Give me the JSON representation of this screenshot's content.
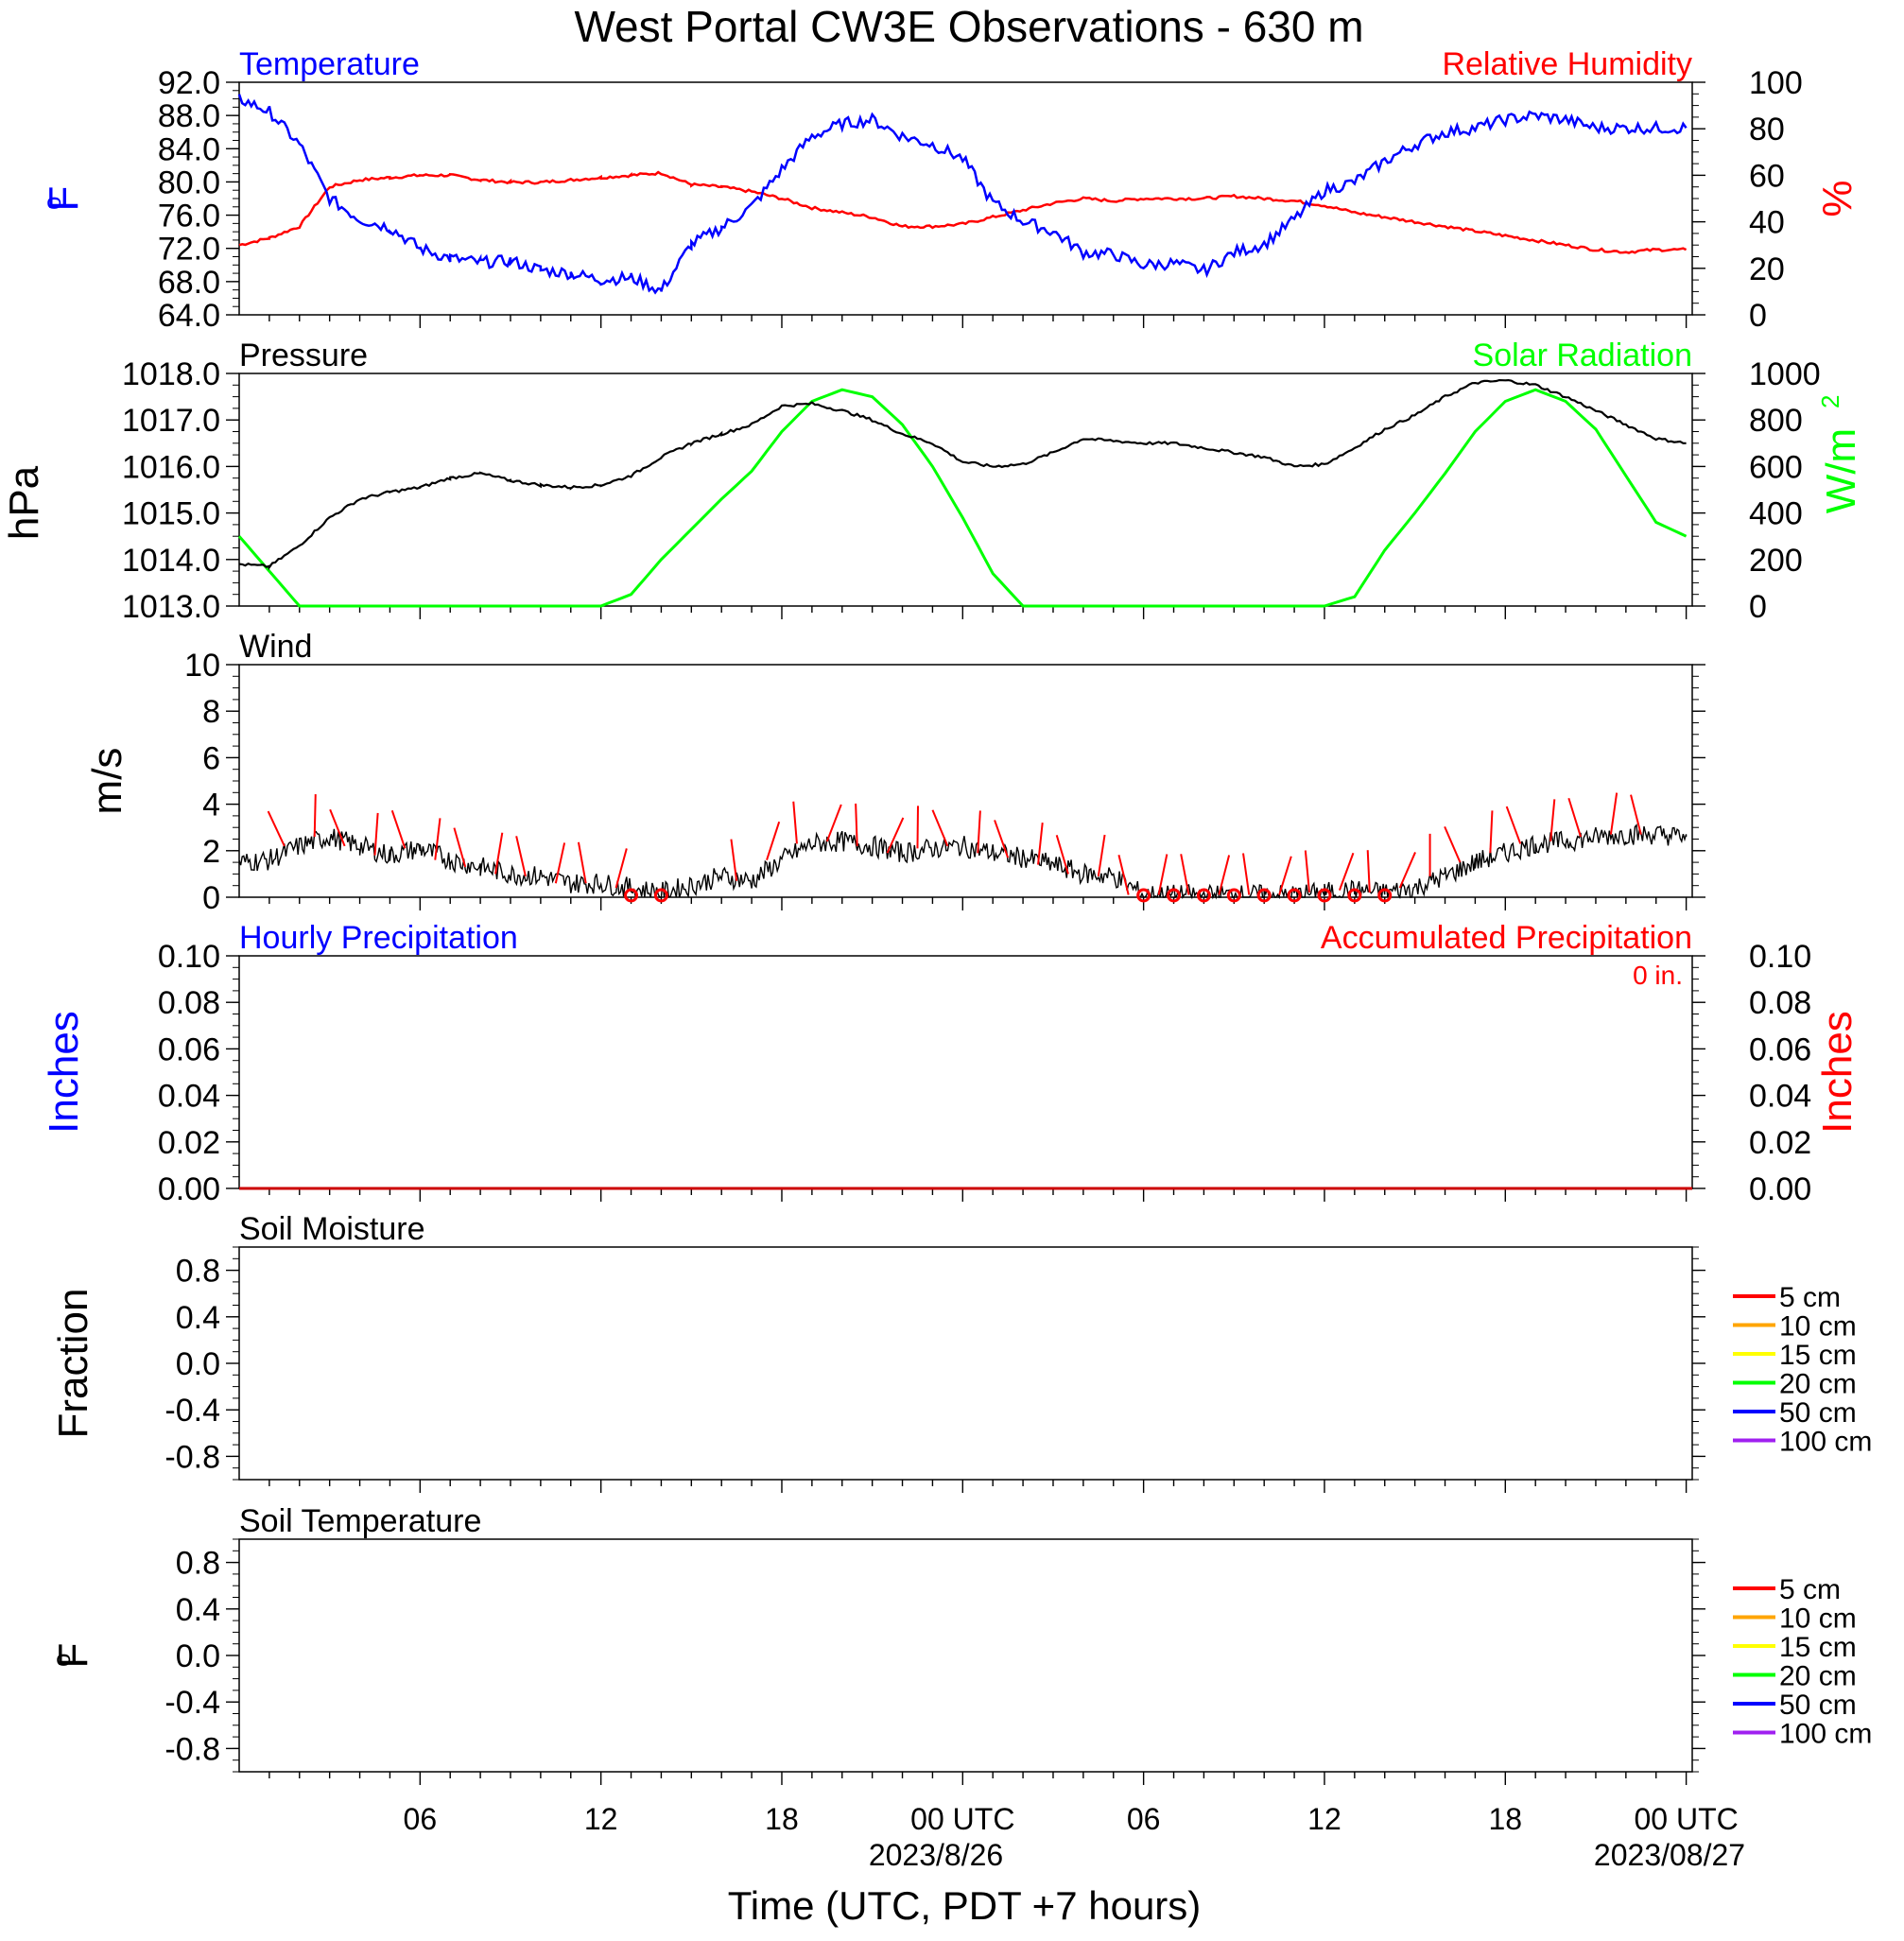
{
  "title": "West Portal CW3E Observations - 630 m",
  "x_axis": {
    "title": "Time (UTC, PDT +7 hours)",
    "ticks": [
      "06",
      "12",
      "18",
      "00 UTC",
      "06",
      "12",
      "18",
      "00 UTC"
    ],
    "date_labels": [
      "2023/8/26",
      "2023/08/27"
    ]
  },
  "chart_data": [
    {
      "type": "line",
      "panel": "temperature-humidity",
      "title_left": "Temperature",
      "title_right": "Relative Humidity",
      "ylabel_left": "oF",
      "ylabel_right": "%",
      "ylim_left": [
        64,
        92
      ],
      "ylim_right": [
        0,
        100
      ],
      "yticks_left": [
        "92.0",
        "88.0",
        "84.0",
        "80.0",
        "76.0",
        "72.0",
        "68.0",
        "64.0"
      ],
      "yticks_right": [
        "100",
        "80",
        "60",
        "40",
        "20",
        "0"
      ],
      "x_hours": [
        0,
        1,
        2,
        3,
        4,
        5,
        6,
        7,
        8,
        9,
        10,
        11,
        12,
        13,
        14,
        15,
        16,
        17,
        18,
        19,
        20,
        21,
        22,
        23,
        24,
        25,
        26,
        27,
        28,
        29,
        30,
        31,
        32,
        33,
        34,
        35,
        36,
        37,
        38,
        39,
        40,
        41,
        42,
        43,
        44,
        45,
        46,
        47,
        48
      ],
      "series": [
        {
          "name": "Temperature",
          "axis": "left",
          "color": "#0000ff",
          "values": [
            90,
            88.5,
            84.5,
            78,
            75.5,
            74.5,
            72,
            70.8,
            70.3,
            70.5,
            69.4,
            69,
            68.2,
            68.5,
            66.9,
            72.5,
            74.5,
            77,
            81.5,
            85.5,
            87,
            87.5,
            85.5,
            84.5,
            82.8,
            77.5,
            75.3,
            74,
            71.5,
            71.3,
            70,
            70.2,
            69.3,
            71.5,
            72.5,
            75.5,
            79,
            80,
            82.5,
            84.5,
            86,
            86.5,
            87.5,
            88,
            87.5,
            86.5,
            86.5,
            86.5,
            86.5
          ]
        },
        {
          "name": "Relative Humidity",
          "axis": "right",
          "color": "#ff0000",
          "values": [
            30,
            33,
            38,
            55,
            58,
            59,
            60,
            60,
            58,
            57,
            57,
            58,
            59,
            60,
            61,
            56,
            55,
            53,
            50,
            46,
            44,
            42,
            38,
            38,
            39,
            42,
            45,
            48,
            50,
            49,
            50,
            50,
            50,
            51,
            50,
            49,
            47,
            44,
            42,
            40,
            38,
            36,
            34,
            32,
            30,
            28,
            27,
            28,
            28
          ]
        }
      ]
    },
    {
      "type": "line",
      "panel": "pressure-solar",
      "title_left": "Pressure",
      "title_right": "Solar Radiation",
      "ylabel_left": "hPa",
      "ylabel_right": "W/m",
      "ylabel_right_sup": "2",
      "ylim_left": [
        1013,
        1018
      ],
      "ylim_right": [
        0,
        1000
      ],
      "yticks_left": [
        "1018.0",
        "1017.0",
        "1016.0",
        "1015.0",
        "1014.0",
        "1013.0"
      ],
      "yticks_right": [
        "1000",
        "800",
        "600",
        "400",
        "200",
        "0"
      ],
      "x_hours": [
        0,
        1,
        2,
        3,
        4,
        5,
        6,
        7,
        8,
        9,
        10,
        11,
        12,
        13,
        14,
        15,
        16,
        17,
        18,
        19,
        20,
        21,
        22,
        23,
        24,
        25,
        26,
        27,
        28,
        29,
        30,
        31,
        32,
        33,
        34,
        35,
        36,
        37,
        38,
        39,
        40,
        41,
        42,
        43,
        44,
        45,
        46,
        47,
        48
      ],
      "series": [
        {
          "name": "Pressure",
          "axis": "left",
          "color": "#000000",
          "values": [
            1013.9,
            1013.85,
            1014.3,
            1014.9,
            1015.3,
            1015.45,
            1015.55,
            1015.75,
            1015.85,
            1015.7,
            1015.6,
            1015.55,
            1015.6,
            1015.8,
            1016.2,
            1016.5,
            1016.7,
            1016.9,
            1017.3,
            1017.35,
            1017.2,
            1017.0,
            1016.7,
            1016.5,
            1016.1,
            1016.0,
            1016.05,
            1016.3,
            1016.6,
            1016.55,
            1016.5,
            1016.5,
            1016.4,
            1016.3,
            1016.2,
            1016.0,
            1016.05,
            1016.4,
            1016.8,
            1017.1,
            1017.5,
            1017.8,
            1017.85,
            1017.75,
            1017.5,
            1017.2,
            1016.9,
            1016.6,
            1016.5
          ]
        },
        {
          "name": "Solar Radiation",
          "axis": "right",
          "color": "#00ff00",
          "values": [
            300,
            150,
            0,
            0,
            0,
            0,
            0,
            0,
            0,
            0,
            0,
            0,
            0,
            50,
            200,
            330,
            460,
            580,
            750,
            880,
            930,
            900,
            780,
            600,
            380,
            140,
            0,
            0,
            0,
            0,
            0,
            0,
            0,
            0,
            0,
            0,
            0,
            40,
            240,
            400,
            570,
            750,
            880,
            930,
            880,
            760,
            560,
            360,
            300
          ]
        }
      ]
    },
    {
      "type": "line",
      "panel": "wind",
      "title": "Wind",
      "ylabel": "m/s",
      "ylim": [
        0,
        10
      ],
      "yticks": [
        "10",
        "8",
        "6",
        "4",
        "2",
        "0"
      ],
      "x_hours": [
        0,
        1,
        2,
        3,
        4,
        5,
        6,
        7,
        8,
        9,
        10,
        11,
        12,
        13,
        14,
        15,
        16,
        17,
        18,
        19,
        20,
        21,
        22,
        23,
        24,
        25,
        26,
        27,
        28,
        29,
        30,
        31,
        32,
        33,
        34,
        35,
        36,
        37,
        38,
        39,
        40,
        41,
        42,
        43,
        44,
        45,
        46,
        47,
        48
      ],
      "series": [
        {
          "name": "Wind Speed",
          "color": "#000000",
          "values": [
            1.5,
            1.6,
            2.2,
            2.6,
            2.2,
            1.8,
            2.1,
            1.6,
            1.3,
            1.0,
            0.9,
            0.6,
            0.6,
            0.4,
            0.2,
            0.5,
            0.9,
            0.7,
            1.6,
            2.3,
            2.4,
            2.2,
            1.9,
            2.1,
            2.2,
            1.9,
            1.7,
            1.4,
            1.0,
            0.9,
            0.1,
            0.1,
            0.1,
            0.1,
            0.1,
            0.1,
            0.2,
            0.3,
            0.2,
            0.4,
            0.9,
            1.5,
            1.9,
            2.3,
            2.4,
            2.6,
            2.7,
            2.7,
            2.6
          ]
        }
      ],
      "wind_barbs_hours": [
        1.5,
        2.5,
        3.5,
        4.5,
        5.5,
        6.5,
        7.5,
        8.5,
        9.5,
        10.5,
        11.5,
        12.5,
        16.5,
        17.5,
        18.5,
        19.5,
        20.5,
        21.5,
        22.5,
        23.5,
        24.5,
        25.5,
        26.5,
        27.5,
        28.5,
        29.5,
        30.5,
        31.5,
        32.5,
        33.5,
        34.5,
        35.5,
        36.5,
        37.5,
        38.5,
        39.5,
        40.5,
        41.5,
        42.5,
        43.5,
        44.5,
        45.5,
        46.5
      ],
      "calm_hours": [
        13,
        14,
        30,
        31,
        32,
        33,
        34,
        35,
        36,
        37,
        38
      ]
    },
    {
      "type": "line",
      "panel": "precipitation",
      "title_left": "Hourly Precipitation",
      "title_right": "Accumulated Precipitation",
      "accum_label": "0 in.",
      "ylabel_left": "Inches",
      "ylabel_right": "Inches",
      "ylim_left": [
        0,
        0.1
      ],
      "ylim_right": [
        0,
        0.1
      ],
      "yticks_left": [
        "0.10",
        "0.08",
        "0.06",
        "0.04",
        "0.02",
        "0.00"
      ],
      "yticks_right": [
        "0.10",
        "0.08",
        "0.06",
        "0.04",
        "0.02",
        "0.00"
      ],
      "series": [
        {
          "name": "Hourly Precipitation",
          "axis": "left",
          "color": "#0000ff",
          "values": [
            0,
            0
          ]
        },
        {
          "name": "Accumulated Precipitation",
          "axis": "right",
          "color": "#ff0000",
          "values": [
            0,
            0
          ]
        }
      ]
    },
    {
      "type": "line",
      "panel": "soil-moisture",
      "title": "Soil Moisture",
      "ylabel": "Fraction",
      "yticks": [
        "0.8",
        "0.4",
        "0.0",
        "-0.4",
        "-0.8"
      ],
      "legend": [
        {
          "label": "5 cm",
          "color": "#ff0000"
        },
        {
          "label": "10 cm",
          "color": "#ffa500"
        },
        {
          "label": "15 cm",
          "color": "#ffff00"
        },
        {
          "label": "20 cm",
          "color": "#00ff00"
        },
        {
          "label": "50 cm",
          "color": "#0000ff"
        },
        {
          "label": "100 cm",
          "color": "#a020f0"
        }
      ]
    },
    {
      "type": "line",
      "panel": "soil-temperature",
      "title": "Soil Temperature",
      "ylabel": "oF",
      "yticks": [
        "0.8",
        "0.4",
        "0.0",
        "-0.4",
        "-0.8"
      ],
      "legend": [
        {
          "label": "5 cm",
          "color": "#ff0000"
        },
        {
          "label": "10 cm",
          "color": "#ffa500"
        },
        {
          "label": "15 cm",
          "color": "#ffff00"
        },
        {
          "label": "20 cm",
          "color": "#00ff00"
        },
        {
          "label": "50 cm",
          "color": "#0000ff"
        },
        {
          "label": "100 cm",
          "color": "#a020f0"
        }
      ]
    }
  ]
}
